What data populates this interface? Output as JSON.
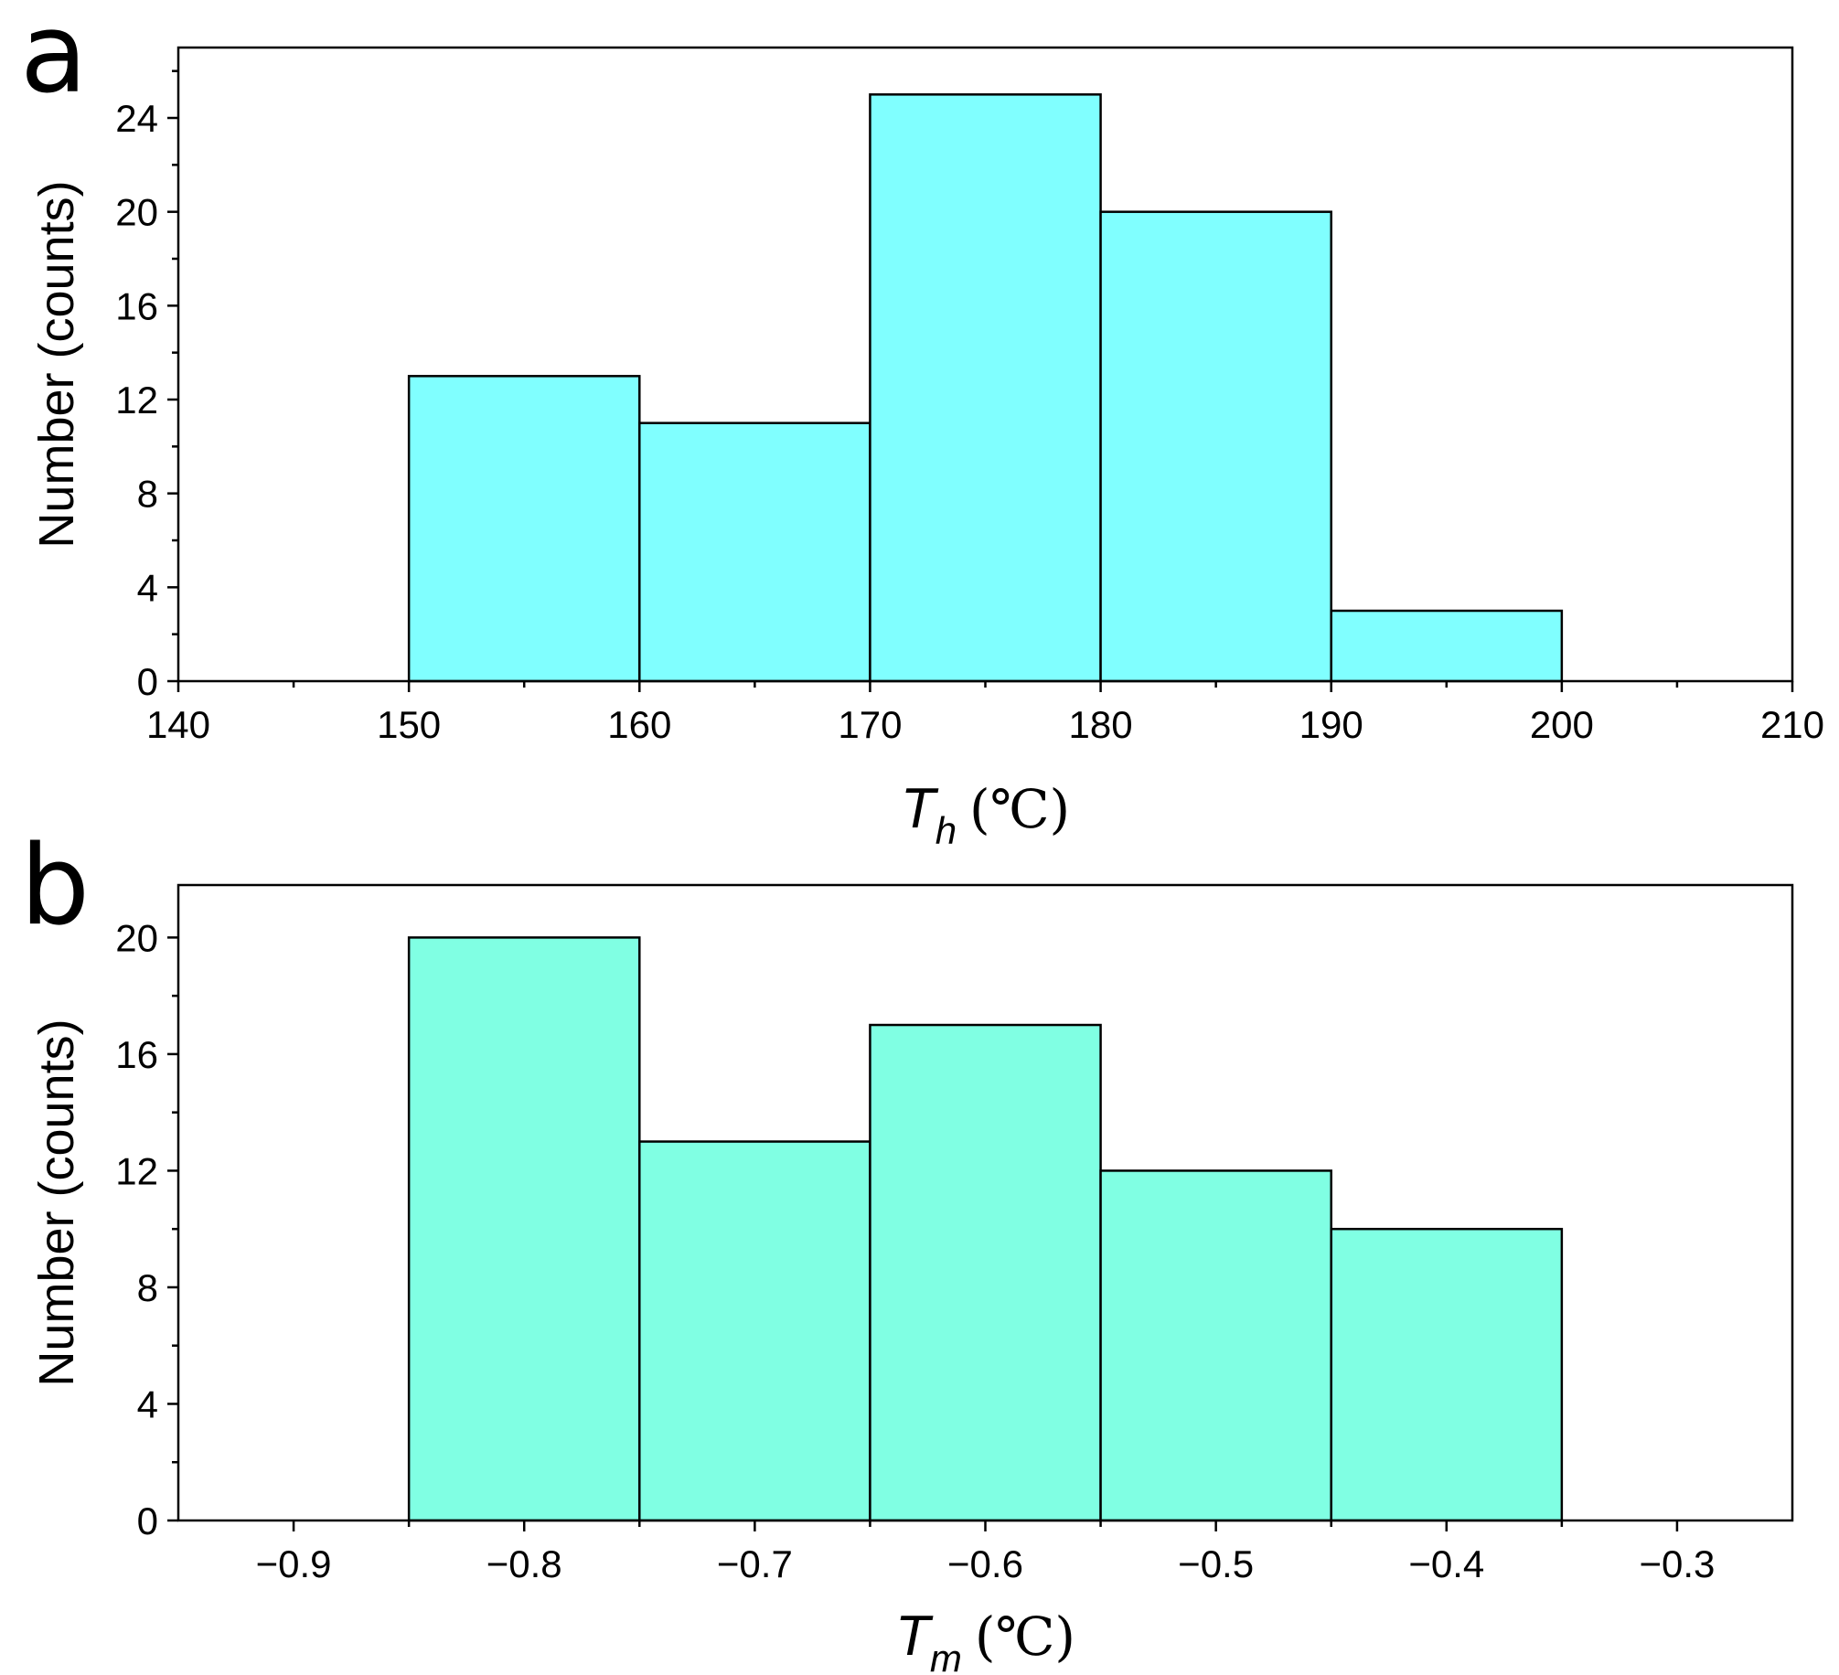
{
  "chart_data": [
    {
      "panel": "a",
      "type": "bar",
      "subtype": "histogram",
      "bin_edges": [
        150,
        160,
        170,
        180,
        190,
        200
      ],
      "values": [
        13,
        11,
        25,
        20,
        3
      ],
      "bar_color": "#80ffff",
      "xlim": [
        140,
        210
      ],
      "ylim": [
        0,
        27
      ],
      "xticks": [
        140,
        150,
        160,
        170,
        180,
        190,
        200,
        210
      ],
      "xtick_labels": [
        "140",
        "150",
        "160",
        "170",
        "180",
        "190",
        "200",
        "210"
      ],
      "yticks": [
        0,
        4,
        8,
        12,
        16,
        20,
        24
      ],
      "ytick_labels": [
        "0",
        "4",
        "8",
        "12",
        "16",
        "20",
        "24"
      ],
      "xlabel": {
        "symbol": "T",
        "subscript": "h",
        "unit": "(℃)"
      },
      "ylabel": "Number (counts)",
      "grid": false,
      "legend": false
    },
    {
      "panel": "b",
      "type": "bar",
      "subtype": "histogram",
      "bin_edges": [
        -0.85,
        -0.75,
        -0.65,
        -0.55,
        -0.45,
        -0.35
      ],
      "values": [
        20,
        13,
        17,
        12,
        10
      ],
      "bar_color": "#80ffe3",
      "xlim": [
        -0.95,
        -0.25
      ],
      "ylim": [
        0,
        21.8
      ],
      "xticks": [
        -0.9,
        -0.8,
        -0.7,
        -0.6,
        -0.5,
        -0.4,
        -0.3
      ],
      "xtick_labels": [
        "−0.9",
        "−0.8",
        "−0.7",
        "−0.6",
        "−0.5",
        "−0.4",
        "−0.3"
      ],
      "yticks": [
        0,
        4,
        8,
        12,
        16,
        20
      ],
      "ytick_labels": [
        "0",
        "4",
        "8",
        "12",
        "16",
        "20"
      ],
      "xlabel": {
        "symbol": "T",
        "subscript": "m",
        "unit": "(℃)"
      },
      "ylabel": "Number (counts)",
      "grid": false,
      "legend": false
    }
  ]
}
